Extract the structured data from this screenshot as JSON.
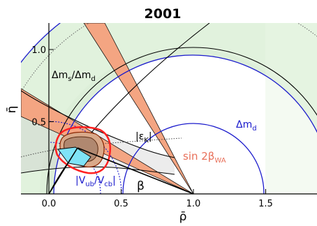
{
  "chart_data": {
    "type": "scatter",
    "title": "2001",
    "xlabel": "ρ̄",
    "ylabel": "η̄",
    "xlim": [
      -0.2,
      1.85
    ],
    "ylim": [
      0.0,
      1.18
    ],
    "x_ticks": [
      {
        "value": 0.0,
        "label": "0.0"
      },
      {
        "value": 0.5,
        "label": "0.5"
      },
      {
        "value": 1.0,
        "label": "1.0"
      },
      {
        "value": 1.5,
        "label": "1.5"
      }
    ],
    "y_ticks": [
      {
        "value": 0.5,
        "label": "0.5"
      },
      {
        "value": 1.0,
        "label": "1.0"
      }
    ],
    "constraints": [
      {
        "key": "dm_ratio",
        "label_main": "Δm",
        "label_sub1": "s",
        "label_mid": "/Δm",
        "label_sub2": "d",
        "color": "#000000"
      },
      {
        "key": "dmd",
        "label_main": "Δm",
        "label_sub": "d",
        "color": "#1a1acc"
      },
      {
        "key": "epsK",
        "label_main": "|ε",
        "label_sub": "K",
        "label_end": "|",
        "color": "#000000"
      },
      {
        "key": "sin2b",
        "label_main": "sin 2β",
        "label_sub": "WA",
        "color": "#e8705a"
      },
      {
        "key": "vub",
        "label_main": "|V",
        "label_sub1": "ub",
        "label_mid": "/V",
        "label_sub2": "cb",
        "label_end": "|",
        "color": "#1a1acc"
      }
    ],
    "angle_label": "β",
    "apex_fit": {
      "rho": 0.19,
      "eta": 0.31
    }
  }
}
